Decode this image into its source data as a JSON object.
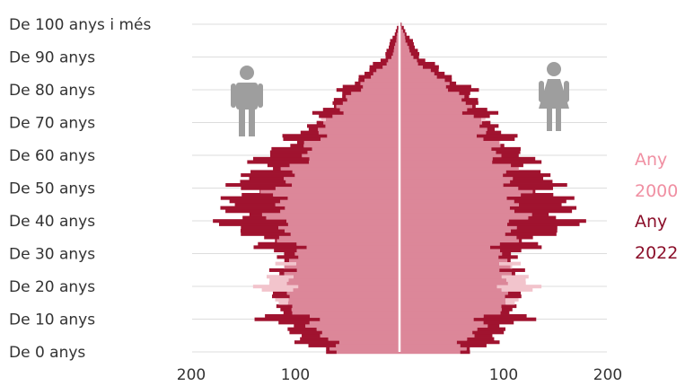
{
  "chart_data": {
    "type": "population-pyramid",
    "y_labels": [
      "De 0 anys",
      "De 10 anys",
      "De 20 anys",
      "De 30 anys",
      "De 40 anys",
      "De 50 anys",
      "De 60 anys",
      "De 70 anys",
      "De 80 anys",
      "De 90 anys",
      "De 100 anys i més"
    ],
    "x_tick_labels": [
      "200",
      "100",
      "100",
      "200"
    ],
    "xlim": [
      0,
      200
    ],
    "ylim": [
      0,
      100
    ],
    "grid": true,
    "legend": {
      "placement": "right",
      "line1": [
        "Any",
        "2000"
      ],
      "line2": [
        "Any",
        "2022"
      ]
    },
    "colors": {
      "year_2000": "#f2c4cc",
      "year_2022": "#a0132f",
      "overlap": "#dc8799",
      "axis": "#cccccc",
      "icon": "#9e9e9e"
    },
    "icons": {
      "left": "male-person-icon",
      "right": "female-person-icon"
    },
    "series": [
      {
        "name": "2000",
        "ages": [
          0,
          10,
          20,
          30,
          40,
          50,
          60,
          70,
          80,
          90,
          100
        ],
        "men": [
          57,
          88,
          130,
          97,
          118,
          117,
          91,
          71,
          42,
          7,
          0
        ],
        "women": [
          55,
          82,
          126,
          95,
          114,
          112,
          95,
          77,
          53,
          12,
          1
        ]
      },
      {
        "name": "2022",
        "ages": [
          0,
          10,
          20,
          30,
          40,
          50,
          60,
          70,
          80,
          90,
          100
        ],
        "men": [
          75,
          123,
          106,
          115,
          166,
          155,
          128,
          82,
          54,
          15,
          1
        ],
        "women": [
          72,
          116,
          102,
          111,
          166,
          150,
          118,
          90,
          68,
          21,
          2
        ]
      }
    ]
  }
}
